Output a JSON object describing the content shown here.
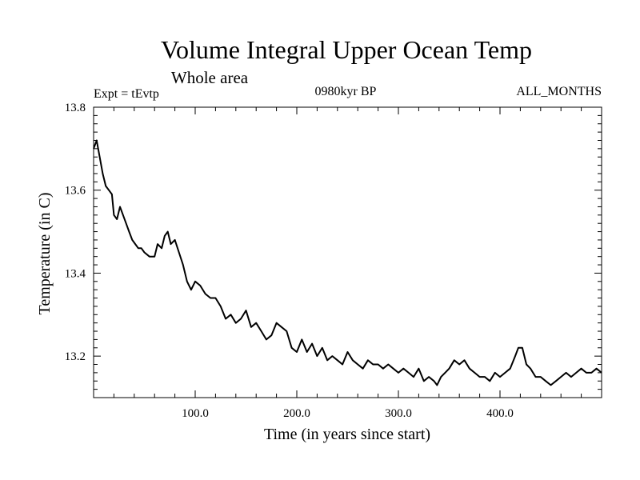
{
  "chart_data": {
    "type": "line",
    "title": "Volume Integral Upper Ocean Temp",
    "subtitle": "Whole area",
    "left_label": "Expt = tEvtp",
    "center_label": "0980kyr BP",
    "right_label": "ALL_MONTHS",
    "xlabel": "Time (in years since start)",
    "ylabel": "Temperature (in C)",
    "xlim": [
      0,
      500
    ],
    "ylim": [
      13.1,
      13.8
    ],
    "x_ticks": [
      100,
      200,
      300,
      400
    ],
    "x_tick_labels": [
      "100.0",
      "200.0",
      "300.0",
      "400.0"
    ],
    "y_ticks": [
      13.2,
      13.4,
      13.6,
      13.8
    ],
    "y_tick_labels": [
      "13.2",
      "13.4",
      "13.6",
      "13.8"
    ],
    "series": [
      {
        "name": "Volume Integral Upper Ocean Temp",
        "color": "#000000",
        "x": [
          0,
          3,
          6,
          9,
          12,
          15,
          18,
          20,
          23,
          26,
          29,
          32,
          35,
          38,
          41,
          44,
          47,
          50,
          55,
          60,
          63,
          67,
          70,
          73,
          76,
          80,
          84,
          88,
          92,
          96,
          100,
          105,
          110,
          115,
          120,
          125,
          130,
          135,
          140,
          145,
          150,
          155,
          160,
          165,
          170,
          175,
          180,
          185,
          190,
          195,
          200,
          205,
          210,
          215,
          220,
          225,
          230,
          235,
          240,
          245,
          250,
          255,
          260,
          265,
          270,
          275,
          280,
          285,
          290,
          295,
          300,
          305,
          310,
          315,
          320,
          325,
          330,
          335,
          338,
          342,
          346,
          350,
          355,
          360,
          365,
          370,
          375,
          380,
          385,
          390,
          395,
          400,
          405,
          410,
          415,
          418,
          422,
          426,
          430,
          435,
          440,
          445,
          450,
          455,
          460,
          465,
          470,
          475,
          480,
          485,
          490,
          495,
          500
        ],
        "values": [
          13.7,
          13.72,
          13.68,
          13.64,
          13.61,
          13.6,
          13.59,
          13.54,
          13.53,
          13.56,
          13.54,
          13.52,
          13.5,
          13.48,
          13.47,
          13.46,
          13.46,
          13.45,
          13.44,
          13.44,
          13.47,
          13.46,
          13.49,
          13.5,
          13.47,
          13.48,
          13.45,
          13.42,
          13.38,
          13.36,
          13.38,
          13.37,
          13.35,
          13.34,
          13.34,
          13.32,
          13.29,
          13.3,
          13.28,
          13.29,
          13.31,
          13.27,
          13.28,
          13.26,
          13.24,
          13.25,
          13.28,
          13.27,
          13.26,
          13.22,
          13.21,
          13.24,
          13.21,
          13.23,
          13.2,
          13.22,
          13.19,
          13.2,
          13.19,
          13.18,
          13.21,
          13.19,
          13.18,
          13.17,
          13.19,
          13.18,
          13.18,
          13.17,
          13.18,
          13.17,
          13.16,
          13.17,
          13.16,
          13.15,
          13.17,
          13.14,
          13.15,
          13.14,
          13.13,
          13.15,
          13.16,
          13.17,
          13.19,
          13.18,
          13.19,
          13.17,
          13.16,
          13.15,
          13.15,
          13.14,
          13.16,
          13.15,
          13.16,
          13.17,
          13.2,
          13.22,
          13.22,
          13.18,
          13.17,
          13.15,
          13.15,
          13.14,
          13.13,
          13.14,
          13.15,
          13.16,
          13.15,
          13.16,
          13.17,
          13.16,
          13.16,
          13.17,
          13.16
        ]
      }
    ]
  }
}
